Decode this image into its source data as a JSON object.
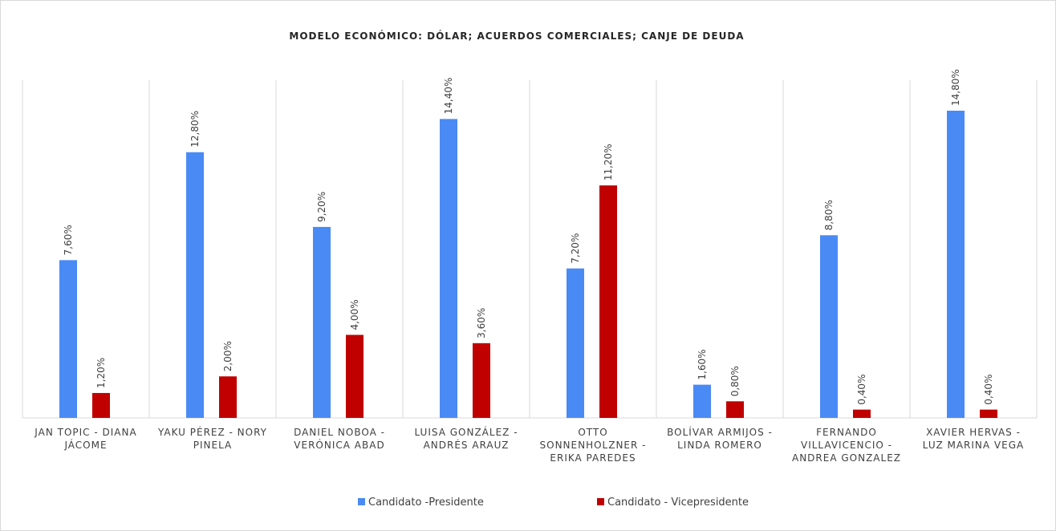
{
  "chart_data": {
    "type": "bar",
    "title": "MODELO ECONÓMICO: DÓLAR; ACUERDOS COMERCIALES; CANJE DE DEUDA",
    "categories": [
      "JAN TOPIC - DIANA JÁCOME",
      "YAKU PÉREZ - NORY PINELA",
      "DANIEL NOBOA - VERÓNICA ABAD",
      "LUISA GONZÁLEZ - ANDRÉS ARAUZ",
      "OTTO SONNENHOLZNER - ERIKA PAREDES",
      "BOLÍVAR ARMIJOS - LINDA ROMERO",
      "FERNANDO VILLAVICENCIO  - ANDREA GONZALEZ",
      "XAVIER HERVAS - LUZ MARINA VEGA"
    ],
    "series": [
      {
        "name": "Candidato -Presidente",
        "color": "#4a8af4",
        "values": [
          7.6,
          12.8,
          9.2,
          14.4,
          7.2,
          1.6,
          8.8,
          14.8
        ],
        "value_labels": [
          "7,60%",
          "12,80%",
          "9,20%",
          "14,40%",
          "7,20%",
          "1,60%",
          "8,80%",
          "14,80%"
        ]
      },
      {
        "name": "Candidato - Vicepresidente",
        "color": "#c00000",
        "values": [
          1.2,
          2.0,
          4.0,
          3.6,
          11.2,
          0.8,
          0.4,
          0.4
        ],
        "value_labels": [
          "1,20%",
          "2,00%",
          "4,00%",
          "3,60%",
          "11,20%",
          "0,80%",
          "0,40%",
          "0,40%"
        ]
      }
    ]
  }
}
